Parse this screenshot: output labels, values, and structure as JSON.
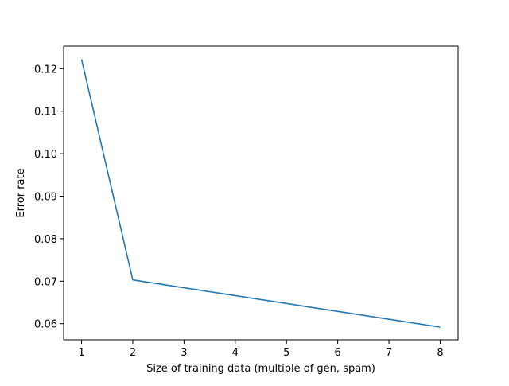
{
  "chart_data": {
    "type": "line",
    "title": "",
    "xlabel": "Size of training data (multiple of gen, spam)",
    "ylabel": "Error rate",
    "xlim": [
      0.65,
      8.35
    ],
    "ylim": [
      0.0562,
      0.1253
    ],
    "xticks": [
      1,
      2,
      3,
      4,
      5,
      6,
      7,
      8
    ],
    "xtick_labels": [
      "1",
      "2",
      "3",
      "4",
      "5",
      "6",
      "7",
      "8"
    ],
    "yticks": [
      0.06,
      0.07,
      0.08,
      0.09,
      0.1,
      0.11,
      0.12
    ],
    "ytick_labels": [
      "0.06",
      "0.07",
      "0.08",
      "0.09",
      "0.10",
      "0.11",
      "0.12"
    ],
    "grid": false,
    "series": [
      {
        "color": "#1f77b4",
        "x": [
          1,
          2,
          8
        ],
        "y": [
          0.1222,
          0.0703,
          0.0592
        ]
      }
    ]
  }
}
